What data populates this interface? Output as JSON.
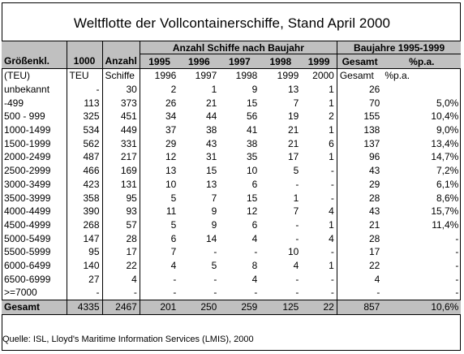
{
  "title": "Weltflotte der Vollcontainerschiffe, Stand April 2000",
  "group_headers": {
    "anzahl_nach_baujahr": "Anzahl Schiffe nach Baujahr",
    "baujahre": "Baujahre 1995-1999"
  },
  "columns": [
    "Größenkl.",
    "1000",
    "Anzahl",
    "1995",
    "1996",
    "1997",
    "1998",
    "1999",
    "Gesamt",
    "%p.a."
  ],
  "units_row": [
    "(TEU)",
    "TEU",
    "Schiffe",
    "1996",
    "1997",
    "1998",
    "1999",
    "2000",
    "Gesamt",
    "%p.a."
  ],
  "rows": [
    [
      "unbekannt",
      "-",
      "30",
      "2",
      "1",
      "9",
      "13",
      "1",
      "26",
      ""
    ],
    [
      "-499",
      "113",
      "373",
      "26",
      "21",
      "15",
      "7",
      "1",
      "70",
      "5,0%"
    ],
    [
      "500 - 999",
      "325",
      "451",
      "34",
      "44",
      "56",
      "19",
      "2",
      "155",
      "10,4%"
    ],
    [
      "1000-1499",
      "534",
      "449",
      "37",
      "38",
      "41",
      "21",
      "1",
      "138",
      "9,0%"
    ],
    [
      "1500-1999",
      "562",
      "331",
      "29",
      "43",
      "38",
      "21",
      "6",
      "137",
      "13,4%"
    ],
    [
      "2000-2499",
      "487",
      "217",
      "12",
      "31",
      "35",
      "17",
      "1",
      "96",
      "14,7%"
    ],
    [
      "2500-2999",
      "466",
      "169",
      "13",
      "15",
      "10",
      "5",
      "-",
      "43",
      "7,2%"
    ],
    [
      "3000-3499",
      "423",
      "131",
      "10",
      "13",
      "6",
      "-",
      "-",
      "29",
      "6,1%"
    ],
    [
      "3500-3999",
      "358",
      "95",
      "5",
      "7",
      "15",
      "1",
      "-",
      "28",
      "8,6%"
    ],
    [
      "4000-4499",
      "390",
      "93",
      "11",
      "9",
      "12",
      "7",
      "4",
      "43",
      "15,7%"
    ],
    [
      "4500-4999",
      "268",
      "57",
      "5",
      "9",
      "6",
      "-",
      "1",
      "21",
      "11,4%"
    ],
    [
      "5000-5499",
      "147",
      "28",
      "6",
      "14",
      "4",
      "-",
      "4",
      "28",
      "-"
    ],
    [
      "5500-5999",
      "95",
      "17",
      "7",
      "-",
      "-",
      "10",
      "-",
      "17",
      "-"
    ],
    [
      "6000-6499",
      "140",
      "22",
      "4",
      "5",
      "8",
      "4",
      "1",
      "22",
      "-"
    ],
    [
      "6500-6999",
      "27",
      "4",
      "-",
      "-",
      "4",
      "-",
      "-",
      "4",
      "-"
    ],
    [
      ">=7000",
      "-",
      "-",
      "-",
      "-",
      "-",
      "-",
      "-",
      "-",
      "-"
    ]
  ],
  "total_row": [
    "Gesamt",
    "4335",
    "2467",
    "201",
    "250",
    "259",
    "125",
    "22",
    "857",
    "10,6%"
  ],
  "source": "Quelle: ISL, Lloyd's Maritime Information Services (LMIS), 2000"
}
